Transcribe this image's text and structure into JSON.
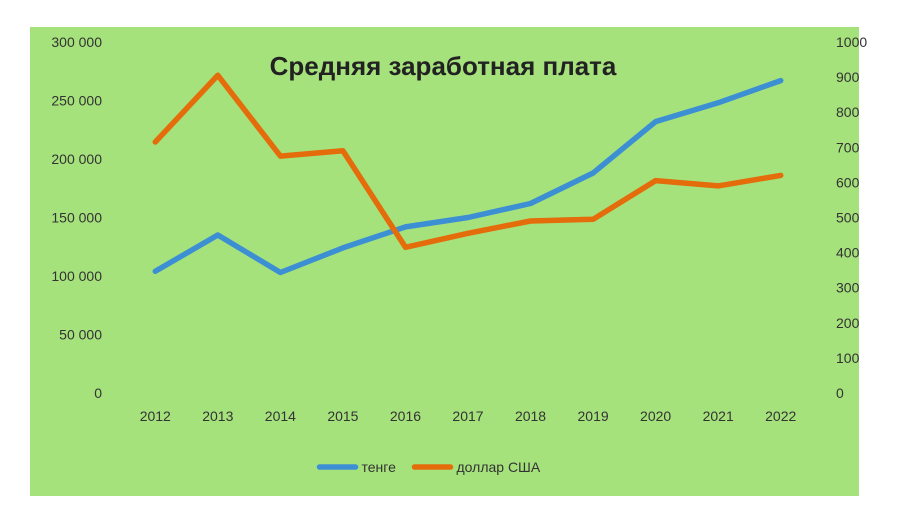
{
  "chart_data": {
    "type": "line",
    "title": "Средняя  заработная  плата",
    "categories": [
      "2012",
      "2013",
      "2014",
      "2015",
      "2016",
      "2017",
      "2018",
      "2019",
      "2020",
      "2021",
      "2022"
    ],
    "series": [
      {
        "name": "тенге",
        "axis": "left",
        "color": "#3d8fd4",
        "values": [
          104000,
          135000,
          103000,
          124000,
          142000,
          150000,
          162000,
          188000,
          232000,
          248000,
          267000
        ]
      },
      {
        "name": "доллар США",
        "axis": "right",
        "color": "#e46c0a",
        "values": [
          715,
          905,
          675,
          690,
          415,
          455,
          490,
          495,
          605,
          590,
          620
        ]
      }
    ],
    "y_left": {
      "min": 0,
      "max": 300000,
      "ticks": [
        "0",
        "50 000",
        "100 000",
        "150 000",
        "200 000",
        "250 000",
        "300 000"
      ]
    },
    "y_right": {
      "min": 0,
      "max": 1000,
      "ticks": [
        "0",
        "100",
        "200",
        "300",
        "400",
        "500",
        "600",
        "700",
        "800",
        "900",
        "1000"
      ]
    },
    "grid": false,
    "legend": "bottom",
    "background": "#a6e27c",
    "plot_background": "#a6e27c"
  }
}
